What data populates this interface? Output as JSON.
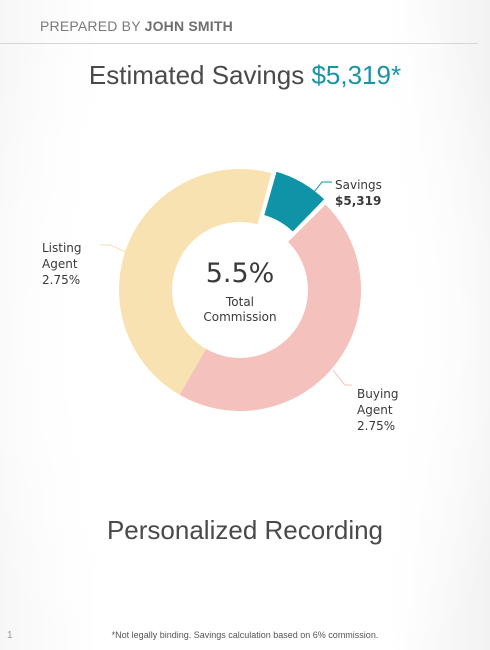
{
  "header": {
    "prefix": "PREPARED BY ",
    "name": "JOHN SMITH"
  },
  "title": {
    "text": "Estimated Savings ",
    "amount": "$5,319*"
  },
  "chart_data": {
    "type": "pie",
    "center_value": "5.5%",
    "center_label_line1": "Total",
    "center_label_line2": "Commission",
    "slices": [
      {
        "name": "Savings",
        "value": 0.5,
        "label_lines": [
          "Savings",
          "$5,319"
        ],
        "color": "#0f93a6"
      },
      {
        "name": "Buying Agent",
        "value": 2.75,
        "label_lines": [
          "Buying",
          "Agent",
          "2.75%"
        ],
        "color": "#f4c1bc"
      },
      {
        "name": "Listing Agent",
        "value": 2.75,
        "label_lines": [
          "Listing",
          "Agent",
          "2.75%"
        ],
        "color": "#f8e2b1"
      }
    ]
  },
  "subtitle": "Personalized Recording",
  "footnote": "*Not legally binding. Savings calculation based on 6% commission.",
  "page_number": "1"
}
